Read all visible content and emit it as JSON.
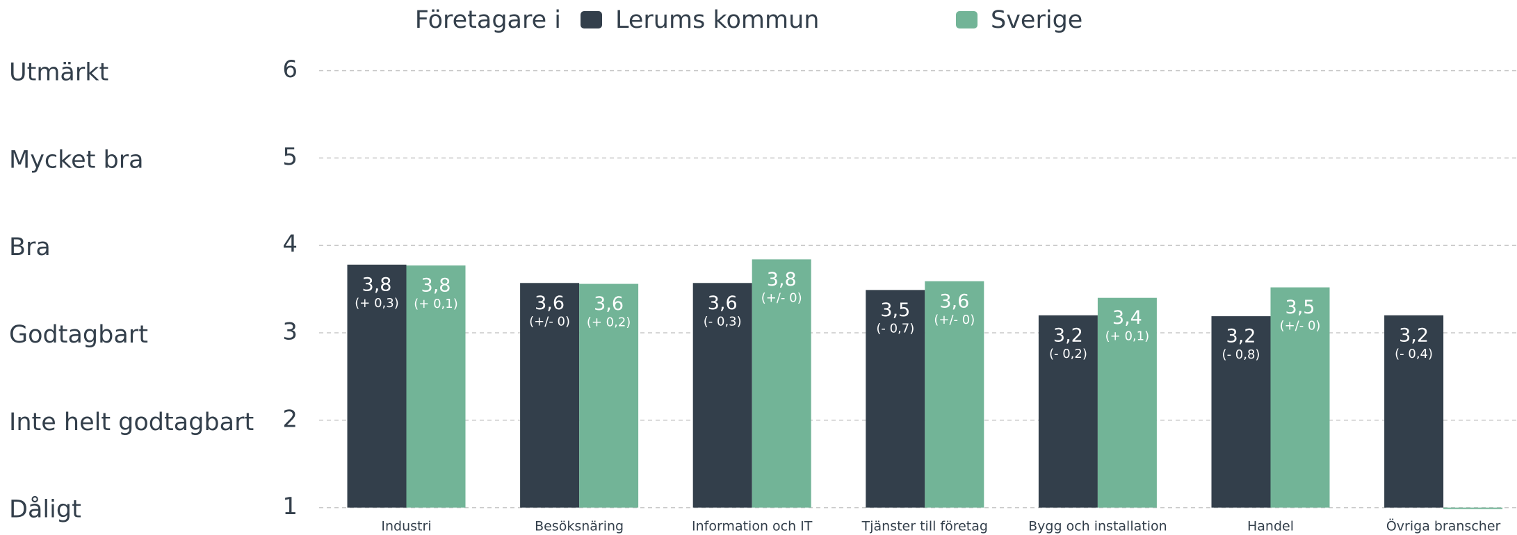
{
  "chart_data": {
    "type": "bar",
    "legend_title": "Företagare i",
    "categories": [
      "Industri",
      "Besöksnäring",
      "Information och IT",
      "Tjänster till företag",
      "Bygg och installation",
      "Handel",
      "Övriga branscher"
    ],
    "series": [
      {
        "name": "Lerums kommun",
        "color": "#333f4b",
        "values": [
          3.78,
          3.57,
          3.57,
          3.49,
          3.2,
          3.19,
          3.2
        ],
        "value_labels": [
          "3,8",
          "3,6",
          "3,6",
          "3,5",
          "3,2",
          "3,2",
          "3,2"
        ],
        "change_labels": [
          "(+ 0,3)",
          "(+/- 0)",
          "(- 0,3)",
          "(- 0,7)",
          "(- 0,2)",
          "(- 0,8)",
          "(- 0,4)"
        ]
      },
      {
        "name": "Sverige",
        "color": "#72b497",
        "values": [
          3.77,
          3.56,
          3.84,
          3.59,
          3.4,
          3.52,
          1
        ],
        "value_labels": [
          "3,8",
          "3,6",
          "3,8",
          "3,6",
          "3,4",
          "3,5",
          null
        ],
        "change_labels": [
          "(+ 0,1)",
          "(+ 0,2)",
          "(+/- 0)",
          "(+/- 0)",
          "(+ 0,1)",
          "(+/- 0)",
          null
        ]
      }
    ],
    "ylim": [
      1,
      6
    ],
    "yticks": [
      1,
      2,
      3,
      4,
      5,
      6
    ],
    "ytick_names": [
      "Dåligt",
      "Inte helt godtagbart",
      "Godtagbart",
      "Bra",
      "Mycket bra",
      "Utmärkt"
    ],
    "grid": true
  }
}
